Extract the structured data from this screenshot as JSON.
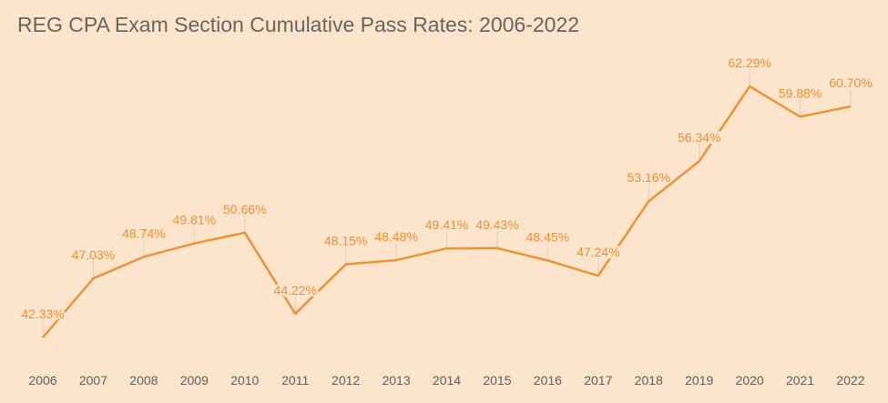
{
  "chart_data": {
    "type": "line",
    "title": "REG CPA Exam Section Cumulative Pass Rates: 2006-2022",
    "xlabel": "",
    "ylabel": "",
    "categories": [
      "2006",
      "2007",
      "2008",
      "2009",
      "2010",
      "2011",
      "2012",
      "2013",
      "2014",
      "2015",
      "2016",
      "2017",
      "2018",
      "2019",
      "2020",
      "2021",
      "2022"
    ],
    "values": [
      42.33,
      47.03,
      48.74,
      49.81,
      50.66,
      44.22,
      48.15,
      48.48,
      49.41,
      49.43,
      48.45,
      47.24,
      53.16,
      56.34,
      62.29,
      59.88,
      60.7
    ],
    "data_labels": [
      "42.33%",
      "47.03%",
      "48.74%",
      "49.81%",
      "50.66%",
      "44.22%",
      "48.15%",
      "48.48%",
      "49.41%",
      "49.43%",
      "48.45%",
      "47.24%",
      "53.16%",
      "56.34%",
      "62.29%",
      "59.88%",
      "60.70%"
    ],
    "grid": false,
    "legend": "none",
    "colors": {
      "line": "#ee9236",
      "label": "#ee8f34",
      "background": "#fce5cc",
      "text": "#6a6460"
    }
  }
}
